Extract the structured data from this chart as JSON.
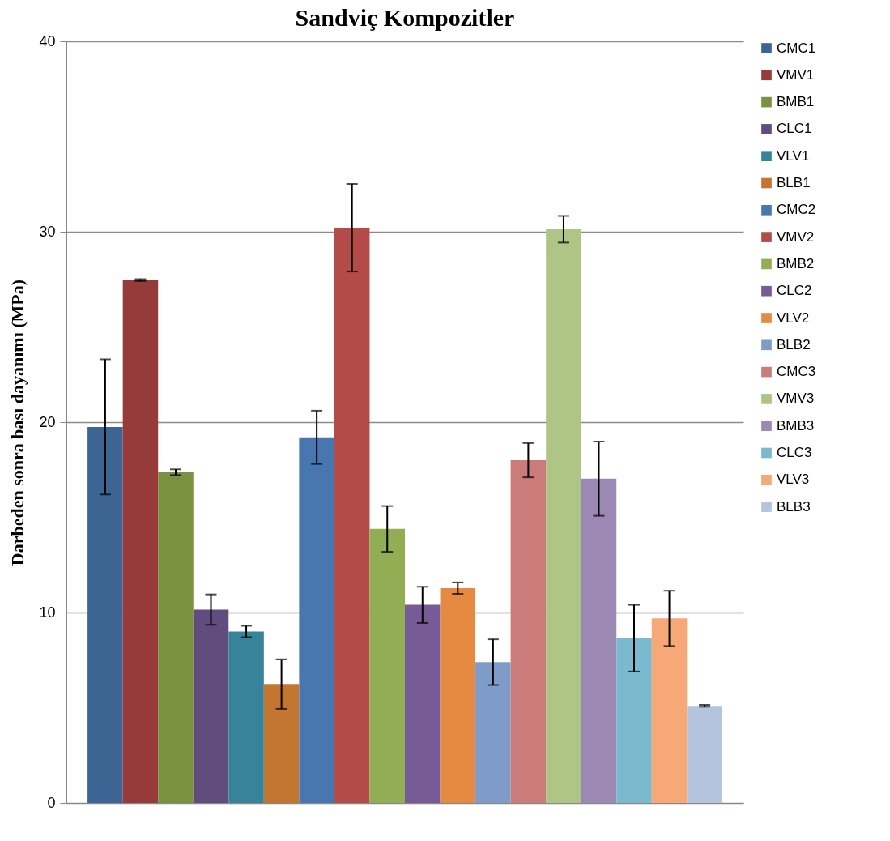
{
  "chart_data": {
    "type": "bar",
    "title": "Sandviç Kompozitler",
    "ylabel": "Darbeden sonra bası dayanımı (MPa)",
    "categories": [
      null
    ],
    "series": [
      {
        "name": "CMC1",
        "color": "#3d6594",
        "values": [
          19.75
        ],
        "errors": [
          3.55
        ]
      },
      {
        "name": "VMV1",
        "color": "#963b3a",
        "values": [
          27.46
        ],
        "errors": [
          0.05
        ]
      },
      {
        "name": "BMB1",
        "color": "#7a9140",
        "values": [
          17.37
        ],
        "errors": [
          0.15
        ]
      },
      {
        "name": "CLC1",
        "color": "#614c7e",
        "values": [
          10.15
        ],
        "errors": [
          0.8
        ]
      },
      {
        "name": "VLV1",
        "color": "#37849a",
        "values": [
          9.0
        ],
        "errors": [
          0.3
        ]
      },
      {
        "name": "BLB1",
        "color": "#c37532",
        "values": [
          6.24
        ],
        "errors": [
          1.3
        ]
      },
      {
        "name": "CMC2",
        "color": "#4877b0",
        "values": [
          19.2
        ],
        "errors": [
          1.4
        ]
      },
      {
        "name": "VMV2",
        "color": "#b34b48",
        "values": [
          30.21
        ],
        "errors": [
          2.3
        ]
      },
      {
        "name": "BMB2",
        "color": "#91ae55",
        "values": [
          14.39
        ],
        "errors": [
          1.2
        ]
      },
      {
        "name": "CLC2",
        "color": "#765b97",
        "values": [
          10.4
        ],
        "errors": [
          0.95
        ]
      },
      {
        "name": "VLV2",
        "color": "#e68a41",
        "values": [
          11.28
        ],
        "errors": [
          0.3
        ]
      },
      {
        "name": "BLB2",
        "color": "#7f9cc8",
        "values": [
          7.39
        ],
        "errors": [
          1.2
        ]
      },
      {
        "name": "CMC3",
        "color": "#cb7b79",
        "values": [
          18.0
        ],
        "errors": [
          0.9
        ]
      },
      {
        "name": "VMV3",
        "color": "#aec585",
        "values": [
          30.13
        ],
        "errors": [
          0.7
        ]
      },
      {
        "name": "BMB3",
        "color": "#9c89b3",
        "values": [
          17.03
        ],
        "errors": [
          1.95
        ]
      },
      {
        "name": "CLC3",
        "color": "#7ab9ce",
        "values": [
          8.65
        ],
        "errors": [
          1.75
        ]
      },
      {
        "name": "VLV3",
        "color": "#f6a877",
        "values": [
          9.69
        ],
        "errors": [
          1.45
        ]
      },
      {
        "name": "BLB3",
        "color": "#b4c3de",
        "values": [
          5.1
        ],
        "errors": [
          0.05
        ]
      }
    ],
    "ylim": [
      0,
      40
    ],
    "yticks": [
      0,
      10,
      20,
      30,
      40
    ],
    "grid": "y",
    "legend": "right",
    "tick_labels": "y"
  }
}
